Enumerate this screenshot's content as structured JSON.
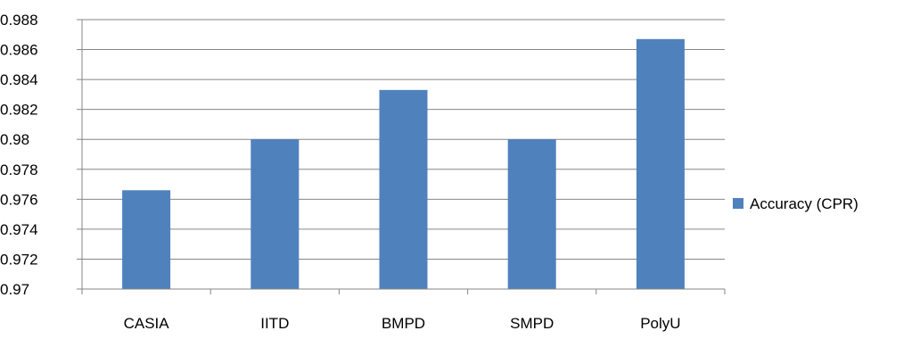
{
  "chart_data": {
    "type": "bar",
    "title": "",
    "xlabel": "",
    "ylabel": "",
    "categories": [
      "CASIA",
      "IITD",
      "BMPD",
      "SMPD",
      "PolyU"
    ],
    "series": [
      {
        "name": "Accuracy (CPR)",
        "color": "#4F81BD",
        "values": [
          0.9766,
          0.98,
          0.9833,
          0.98,
          0.9867
        ]
      }
    ],
    "ylim": [
      0.97,
      0.988
    ],
    "yticks": [
      "0.97",
      "0.972",
      "0.974",
      "0.976",
      "0.978",
      "0.98",
      "0.982",
      "0.984",
      "0.986",
      "0.988"
    ],
    "grid": true,
    "legend_position": "right"
  }
}
